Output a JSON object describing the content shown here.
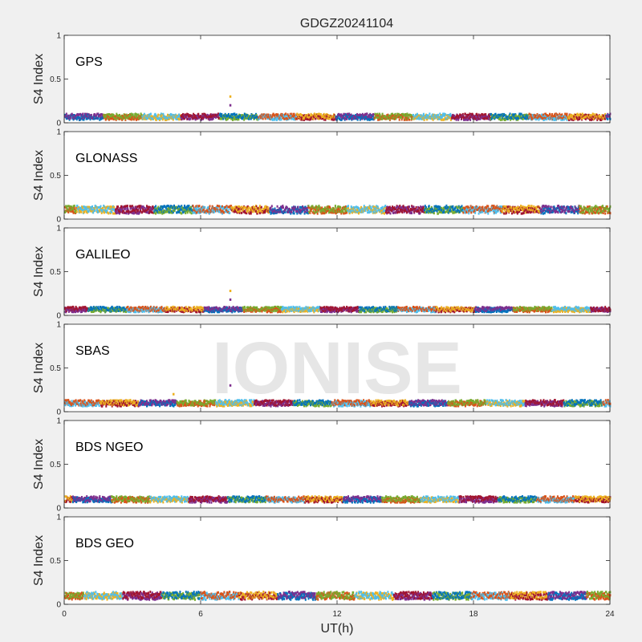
{
  "chart_data": {
    "type": "scatter",
    "title": "GDGZ20241104",
    "xlabel": "UT(h)",
    "xlim": [
      0,
      24
    ],
    "xticks": [
      "0",
      "6",
      "12",
      "18",
      "24"
    ],
    "watermark": "IONISE",
    "colors": [
      "#0072BD",
      "#D95319",
      "#EDB120",
      "#7E2F8E",
      "#77AC30",
      "#4DBEEE",
      "#A2142F"
    ],
    "panels": [
      {
        "label": "GPS",
        "ylabel": "S4 Index",
        "ylim": [
          0,
          1
        ],
        "yticks": [
          "0",
          "0.5",
          "1"
        ],
        "base_s4": 0.07,
        "spread_s4": 0.03,
        "spikes": [
          {
            "t": 7.3,
            "s4": 0.3
          },
          {
            "t": 7.3,
            "s4": 0.2
          }
        ]
      },
      {
        "label": "GLONASS",
        "ylabel": "S4 Index",
        "ylim": [
          0,
          1
        ],
        "yticks": [
          "0",
          "0.5",
          "1"
        ],
        "base_s4": 0.11,
        "spread_s4": 0.04,
        "spikes": []
      },
      {
        "label": "GALILEO",
        "ylabel": "S4 Index",
        "ylim": [
          0,
          1
        ],
        "yticks": [
          "0",
          "0.5",
          "1"
        ],
        "base_s4": 0.07,
        "spread_s4": 0.025,
        "spikes": [
          {
            "t": 7.3,
            "s4": 0.28
          },
          {
            "t": 7.3,
            "s4": 0.18
          }
        ]
      },
      {
        "label": "SBAS",
        "ylabel": "S4 Index",
        "ylim": [
          0,
          1
        ],
        "yticks": [
          "0",
          "0.5",
          "1"
        ],
        "base_s4": 0.1,
        "spread_s4": 0.03,
        "spikes": [
          {
            "t": 4.8,
            "s4": 0.2
          },
          {
            "t": 7.3,
            "s4": 0.3
          }
        ]
      },
      {
        "label": "BDS NGEO",
        "ylabel": "S4 Index",
        "ylim": [
          0,
          1
        ],
        "yticks": [
          "0",
          "0.5",
          "1"
        ],
        "base_s4": 0.1,
        "spread_s4": 0.03,
        "spikes": []
      },
      {
        "label": "BDS GEO",
        "ylabel": "S4 Index",
        "ylim": [
          0,
          1
        ],
        "yticks": [
          "0",
          "0.5",
          "1"
        ],
        "base_s4": 0.1,
        "spread_s4": 0.04,
        "spikes": []
      }
    ]
  }
}
